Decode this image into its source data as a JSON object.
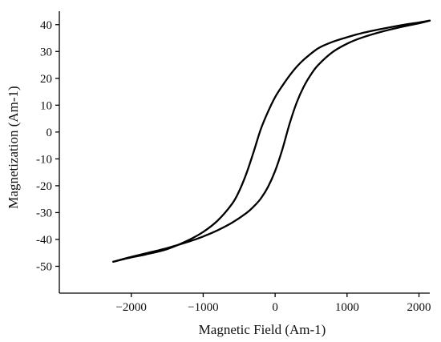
{
  "chart_data": {
    "type": "line",
    "title": "",
    "xlabel": "Magnetic Field (Am-1)",
    "ylabel": "Magnetization (Am-1)",
    "xlim": [
      -3000,
      2150
    ],
    "ylim": [
      -60,
      45
    ],
    "x_ticks": [
      -2000,
      -1000,
      0,
      1000,
      2000
    ],
    "x_tick_labels": [
      "−2000",
      "−1000",
      "0",
      "1000",
      "2000"
    ],
    "y_ticks": [
      -50,
      -40,
      -30,
      -20,
      -10,
      0,
      10,
      20,
      30,
      40
    ],
    "y_tick_labels": [
      "-50",
      "-40",
      "-30",
      "-20",
      "-10",
      "0",
      "10",
      "20",
      "30",
      "40"
    ],
    "grid": false,
    "series": [
      {
        "x": [
          2150,
          2000,
          1800,
          1500,
          1200,
          1000,
          800,
          600,
          400,
          300,
          200,
          100,
          0,
          -100,
          -200,
          -300,
          -400,
          -500,
          -600,
          -800,
          -1000,
          -1200,
          -1500,
          -1800,
          -2000,
          -2250
        ],
        "y": [
          41.5,
          40.8,
          40,
          38.5,
          36.8,
          35.3,
          33.6,
          31.2,
          27,
          24.3,
          21,
          17.2,
          13,
          7.5,
          1,
          -7.5,
          -15.5,
          -22,
          -26.8,
          -33,
          -37.2,
          -40.2,
          -43.6,
          -45.6,
          -46.7,
          -48.3
        ]
      },
      {
        "x": [
          -2250,
          -2000,
          -1800,
          -1500,
          -1200,
          -1000,
          -800,
          -600,
          -400,
          -300,
          -200,
          -100,
          0,
          100,
          200,
          300,
          400,
          500,
          600,
          800,
          1000,
          1200,
          1500,
          1800,
          2000,
          2150
        ],
        "y": [
          -48.3,
          -46.5,
          -45.2,
          -43.2,
          -40.8,
          -38.9,
          -36.6,
          -33.8,
          -30.2,
          -27.8,
          -24.8,
          -20.5,
          -14.5,
          -6.5,
          3,
          11,
          17,
          21.5,
          25,
          29.8,
          32.9,
          35.1,
          37.5,
          39.4,
          40.5,
          41.5
        ]
      }
    ]
  }
}
